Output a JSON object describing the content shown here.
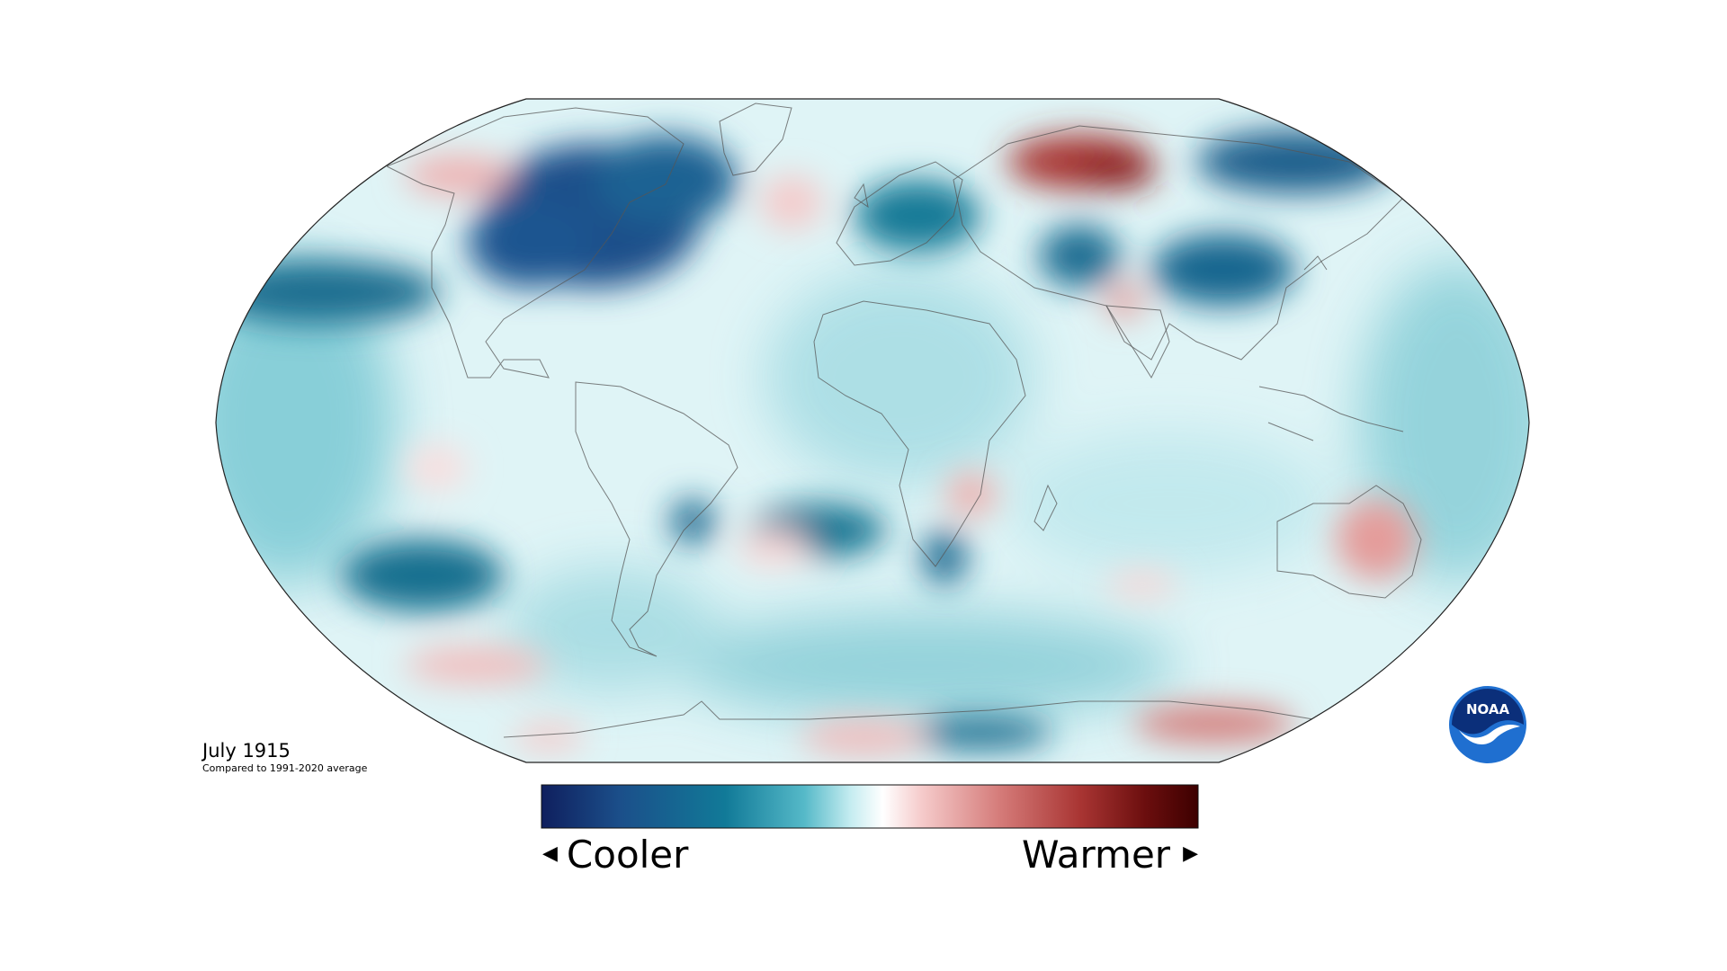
{
  "map": {
    "period": "July 1915",
    "baseline": "Compared to 1991-2020 average"
  },
  "legend": {
    "cool_label": "Cooler",
    "warm_label": "Warmer",
    "colors": [
      "#0f1f5e",
      "#1b4f8a",
      "#117a98",
      "#55b9c8",
      "#c4ecf0",
      "#ffffff",
      "#f5caca",
      "#d47a78",
      "#a93533",
      "#6b0e0e",
      "#3d0000"
    ]
  },
  "logo": {
    "text": "NOAA",
    "colors": {
      "outer": "#1f6fd0",
      "inner": "#0b2f7a",
      "bird": "#ffffff"
    }
  },
  "icons": {
    "left_arrow": "triangle-left-icon",
    "right_arrow": "triangle-right-icon"
  }
}
